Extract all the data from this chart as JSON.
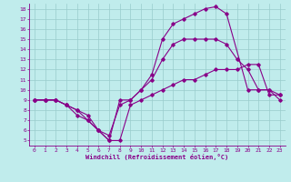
{
  "xlabel": "Windchill (Refroidissement éolien,°C)",
  "xlim": [
    -0.5,
    23.5
  ],
  "ylim": [
    4.5,
    18.5
  ],
  "xticks": [
    0,
    1,
    2,
    3,
    4,
    5,
    6,
    7,
    8,
    9,
    10,
    11,
    12,
    13,
    14,
    15,
    16,
    17,
    18,
    19,
    20,
    21,
    22,
    23
  ],
  "yticks": [
    5,
    6,
    7,
    8,
    9,
    10,
    11,
    12,
    13,
    14,
    15,
    16,
    17,
    18
  ],
  "bg_color": "#c0ecec",
  "line_color": "#880088",
  "grid_color": "#99cccc",
  "line1_x": [
    0,
    1,
    2,
    3,
    4,
    5,
    6,
    7,
    8,
    9,
    10,
    11,
    12,
    13,
    14,
    15,
    16,
    17,
    18,
    19,
    20,
    21,
    22,
    23
  ],
  "line1_y": [
    9,
    9,
    9,
    8.5,
    8,
    7,
    6,
    5,
    5,
    8.5,
    9,
    9.5,
    10,
    10.5,
    11,
    11,
    11.5,
    12,
    12,
    12,
    12.5,
    12.5,
    9.5,
    9.5
  ],
  "line2_x": [
    0,
    1,
    2,
    3,
    4,
    5,
    6,
    7,
    8,
    9,
    10,
    11,
    12,
    13,
    14,
    15,
    16,
    17,
    18,
    20,
    21,
    22,
    23
  ],
  "line2_y": [
    9,
    9,
    9,
    8.5,
    7.5,
    7,
    6,
    5,
    9,
    9,
    10,
    11.5,
    15,
    16.5,
    17,
    17.5,
    18,
    18.2,
    17.5,
    10,
    10,
    10,
    9
  ],
  "line3_x": [
    0,
    1,
    2,
    3,
    4,
    5,
    6,
    7,
    8,
    9,
    10,
    11,
    12,
    13,
    14,
    15,
    16,
    17,
    18,
    19,
    20,
    21,
    22,
    23
  ],
  "line3_y": [
    9,
    9,
    9,
    8.5,
    8,
    7.5,
    6,
    5.5,
    8.5,
    9,
    10,
    11,
    13,
    14.5,
    15,
    15,
    15,
    15,
    14.5,
    13,
    12,
    10,
    10,
    9.5
  ]
}
